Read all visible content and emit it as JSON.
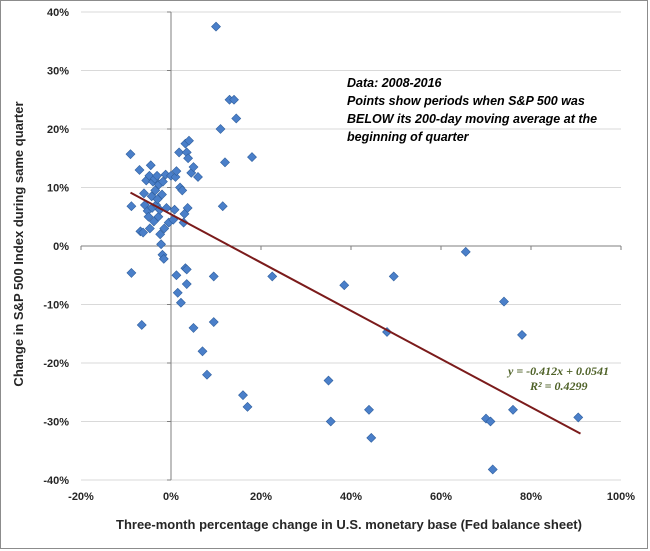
{
  "chart_data": {
    "type": "scatter",
    "title": "",
    "xlabel": "Three-month percentage change in U.S. monetary base (Fed balance sheet)",
    "ylabel": "Change in S&P 500 Index during same quarter",
    "xlim": [
      -0.2,
      1.0
    ],
    "ylim": [
      -0.4,
      0.4
    ],
    "x_ticks": [
      -0.2,
      0.0,
      0.2,
      0.4,
      0.6,
      0.8,
      1.0
    ],
    "y_ticks": [
      -0.4,
      -0.3,
      -0.2,
      -0.1,
      0.0,
      0.1,
      0.2,
      0.3,
      0.4
    ],
    "x_tick_labels": [
      "-20%",
      "0%",
      "20%",
      "40%",
      "60%",
      "80%",
      "100%"
    ],
    "y_tick_labels": [
      "-40%",
      "-30%",
      "-20%",
      "-10%",
      "0%",
      "10%",
      "20%",
      "30%",
      "40%"
    ],
    "grid": "horizontal",
    "annotation_lines": [
      "Data: 2008-2016",
      "Points show periods when S&P 500  was",
      "BELOW its 200-day moving average at the",
      "beginning of quarter"
    ],
    "trendline": {
      "slope": -0.412,
      "intercept": 0.0541,
      "x_range": [
        -0.09,
        0.91
      ],
      "equation": "y = -0.412x + 0.0541",
      "r_squared": "R² = 0.4299",
      "color": "#7b1b1b",
      "label_color": "#4f6228"
    },
    "series": [
      {
        "marker_color": "#4a7fc9",
        "points": [
          [
            -0.09,
            0.157
          ],
          [
            -0.088,
            0.068
          ],
          [
            -0.088,
            -0.046
          ],
          [
            -0.07,
            0.13
          ],
          [
            -0.068,
            0.025
          ],
          [
            -0.065,
            -0.135
          ],
          [
            -0.062,
            0.023
          ],
          [
            -0.06,
            0.09
          ],
          [
            -0.058,
            0.07
          ],
          [
            -0.055,
            0.112
          ],
          [
            -0.052,
            0.06
          ],
          [
            -0.05,
            0.05
          ],
          [
            -0.048,
            0.12
          ],
          [
            -0.047,
            0.03
          ],
          [
            -0.045,
            0.138
          ],
          [
            -0.043,
            0.085
          ],
          [
            -0.042,
            0.065
          ],
          [
            -0.04,
            0.11
          ],
          [
            -0.038,
            0.042
          ],
          [
            -0.036,
            0.115
          ],
          [
            -0.035,
            0.095
          ],
          [
            -0.033,
            0.07
          ],
          [
            -0.031,
            0.12
          ],
          [
            -0.03,
            0.08
          ],
          [
            -0.028,
            0.05
          ],
          [
            -0.027,
            0.105
          ],
          [
            -0.025,
            0.062
          ],
          [
            -0.024,
            0.02
          ],
          [
            -0.022,
            0.003
          ],
          [
            -0.02,
            0.088
          ],
          [
            -0.019,
            -0.015
          ],
          [
            -0.018,
            0.11
          ],
          [
            -0.016,
            -0.022
          ],
          [
            -0.015,
            0.03
          ],
          [
            -0.012,
            0.122
          ],
          [
            -0.01,
            0.065
          ],
          [
            -0.005,
            0.04
          ],
          [
            0.0,
            0.12
          ],
          [
            0.005,
            0.045
          ],
          [
            0.008,
            0.062
          ],
          [
            0.01,
            0.118
          ],
          [
            0.012,
            0.128
          ],
          [
            0.015,
            -0.08
          ],
          [
            0.012,
            -0.05
          ],
          [
            0.018,
            0.16
          ],
          [
            0.02,
            0.1
          ],
          [
            0.022,
            -0.097
          ],
          [
            0.025,
            0.095
          ],
          [
            0.028,
            0.04
          ],
          [
            0.03,
            0.055
          ],
          [
            0.032,
            0.175
          ],
          [
            0.032,
            -0.038
          ],
          [
            0.035,
            -0.04
          ],
          [
            0.035,
            -0.065
          ],
          [
            0.035,
            0.16
          ],
          [
            0.037,
            0.065
          ],
          [
            0.038,
            0.15
          ],
          [
            0.04,
            0.18
          ],
          [
            0.045,
            0.125
          ],
          [
            0.05,
            0.135
          ],
          [
            0.05,
            -0.14
          ],
          [
            0.06,
            0.118
          ],
          [
            0.07,
            -0.18
          ],
          [
            0.08,
            -0.22
          ],
          [
            0.095,
            -0.052
          ],
          [
            0.095,
            -0.13
          ],
          [
            0.1,
            0.375
          ],
          [
            0.11,
            0.2
          ],
          [
            0.115,
            0.068
          ],
          [
            0.12,
            0.143
          ],
          [
            0.13,
            0.25
          ],
          [
            0.14,
            0.25
          ],
          [
            0.145,
            0.218
          ],
          [
            0.16,
            -0.255
          ],
          [
            0.17,
            -0.275
          ],
          [
            0.18,
            0.152
          ],
          [
            0.225,
            -0.052
          ],
          [
            0.35,
            -0.23
          ],
          [
            0.355,
            -0.3
          ],
          [
            0.385,
            -0.067
          ],
          [
            0.44,
            -0.28
          ],
          [
            0.445,
            -0.328
          ],
          [
            0.48,
            -0.147
          ],
          [
            0.495,
            -0.052
          ],
          [
            0.655,
            -0.01
          ],
          [
            0.7,
            -0.295
          ],
          [
            0.71,
            -0.3
          ],
          [
            0.715,
            -0.382
          ],
          [
            0.74,
            -0.095
          ],
          [
            0.76,
            -0.28
          ],
          [
            0.78,
            -0.152
          ],
          [
            0.905,
            -0.293
          ]
        ]
      }
    ]
  }
}
